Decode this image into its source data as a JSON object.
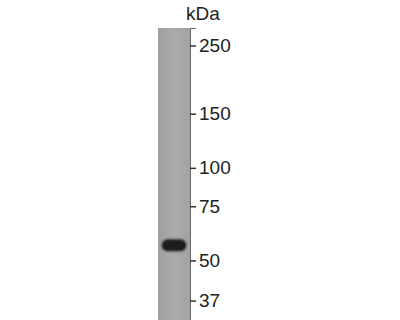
{
  "chart_data": {
    "type": "blot",
    "y_label": "kDa",
    "categories": [
      null
    ],
    "values": [
      56
    ],
    "color": "#1a1a1a",
    "ylim": [
      32,
      285
    ],
    "yticks": [
      250,
      150,
      100,
      75,
      50,
      37
    ],
    "log": "y"
  }
}
